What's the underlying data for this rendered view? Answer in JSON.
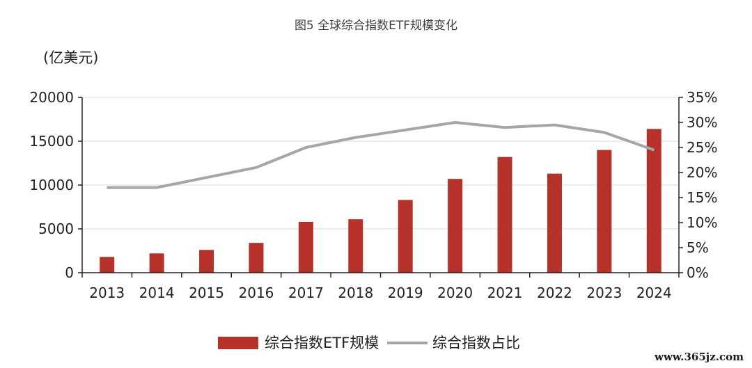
{
  "chart_data": {
    "type": "bar",
    "title": "图5 全球综合指数ETF规模变化",
    "ylabel_left": "(亿美元)",
    "categories": [
      "2013",
      "2014",
      "2015",
      "2016",
      "2017",
      "2018",
      "2019",
      "2020",
      "2021",
      "2022",
      "2023",
      "2024"
    ],
    "series": [
      {
        "name": "综合指数ETF规模",
        "type": "bar",
        "axis": "left",
        "color": "#b5312a",
        "values": [
          1800,
          2200,
          2600,
          3400,
          5800,
          6100,
          8300,
          10700,
          13200,
          11300,
          14000,
          16400
        ]
      },
      {
        "name": "综合指数占比",
        "type": "line",
        "axis": "right",
        "color": "#a6a6a6",
        "values": [
          0.17,
          0.17,
          0.19,
          0.21,
          0.25,
          0.27,
          0.285,
          0.3,
          0.29,
          0.295,
          0.28,
          0.245
        ]
      }
    ],
    "y_left": {
      "min": 0,
      "max": 20000,
      "ticks": [
        "0",
        "5000",
        "10000",
        "15000",
        "20000"
      ]
    },
    "y_right": {
      "min": 0,
      "max": 0.35,
      "ticks": [
        "0%",
        "5%",
        "10%",
        "15%",
        "20%",
        "25%",
        "30%",
        "35%"
      ]
    },
    "grid": true,
    "legend_position": "bottom"
  },
  "watermark": "www.365jz.com"
}
